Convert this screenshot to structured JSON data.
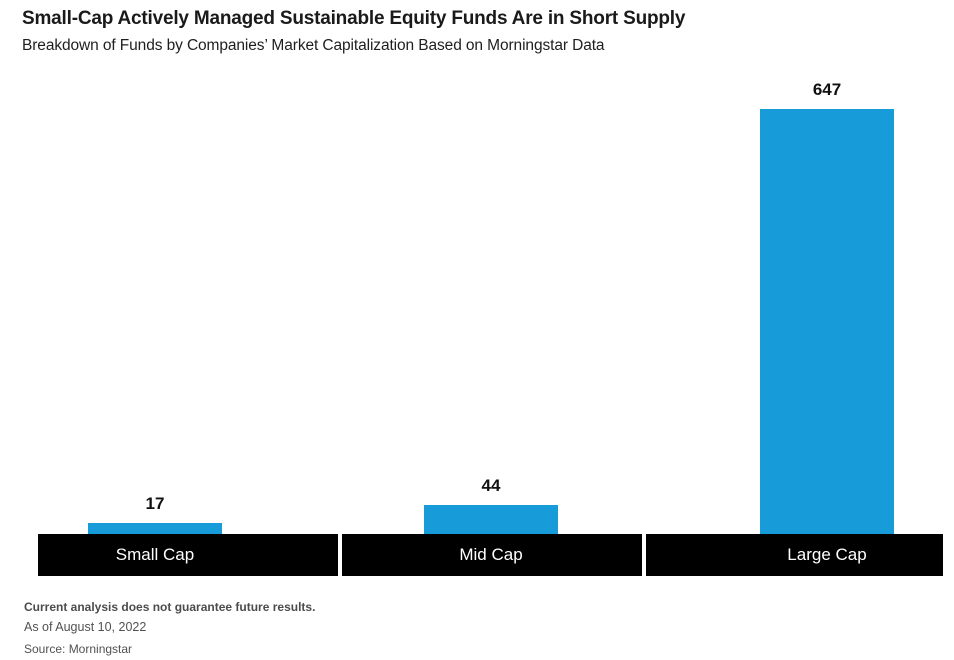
{
  "header": {
    "title": "Small-Cap Actively Managed Sustainable Equity Funds Are in Short Supply",
    "subtitle": "Breakdown of Funds by Companies’ Market Capitalization Based on Morningstar Data"
  },
  "chart_data": {
    "type": "bar",
    "categories": [
      "Small Cap",
      "Mid Cap",
      "Large Cap"
    ],
    "values": [
      17,
      44,
      647
    ],
    "value_labels": [
      "17",
      "44",
      "647"
    ],
    "title": "Small-Cap Actively Managed Sustainable Equity Funds Are in Short Supply",
    "subtitle": "Breakdown of Funds by Companies’ Market Capitalization Based on Morningstar Data",
    "xlabel": "",
    "ylabel": "",
    "ylim": [
      0,
      647
    ],
    "grid": false,
    "legend_position": "none",
    "bar_color": "#189CD9",
    "axis_band_color": "#000000",
    "axis_label_color": "#ffffff",
    "value_label_color": "#111111"
  },
  "footer": {
    "disclaimer": "Current analysis does not guarantee future results.",
    "as_of": "As of August 10, 2022",
    "source": "Source: Morningstar"
  }
}
